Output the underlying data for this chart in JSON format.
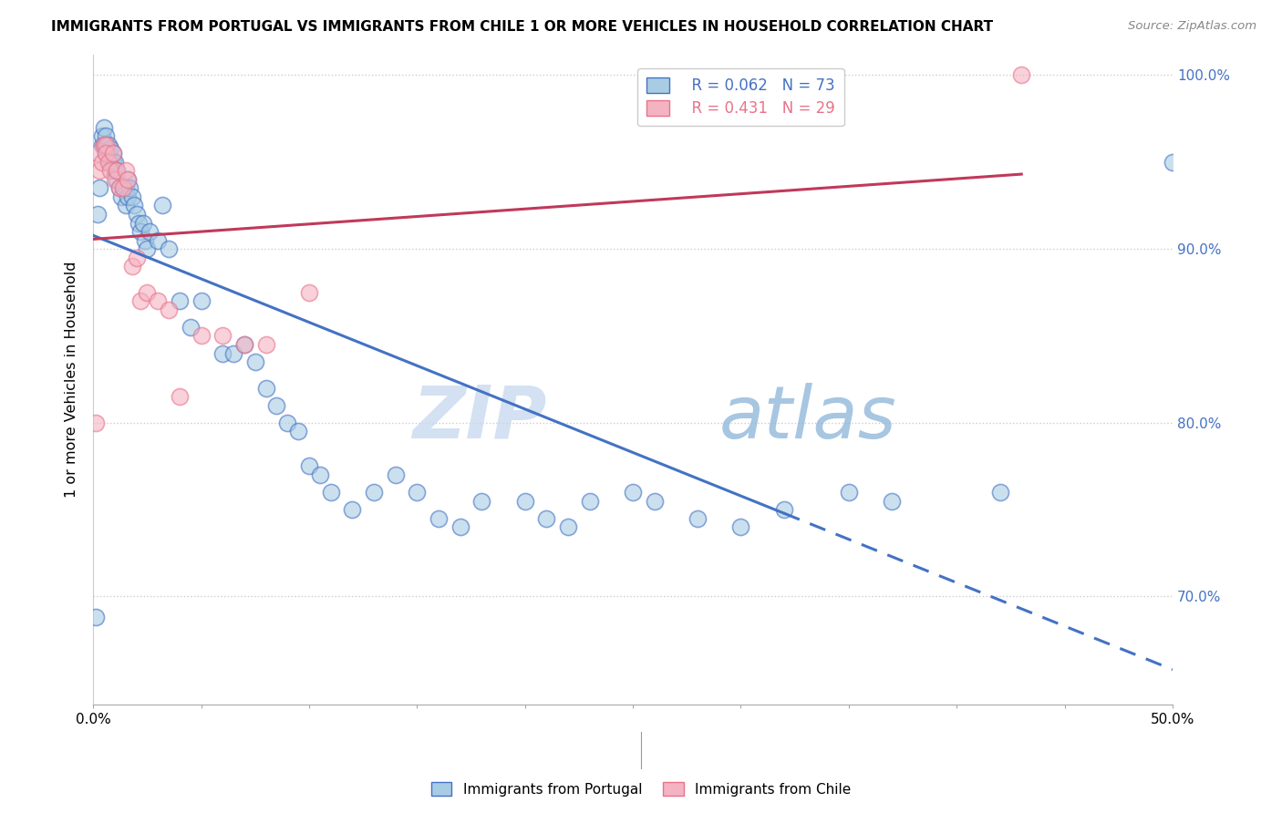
{
  "title": "IMMIGRANTS FROM PORTUGAL VS IMMIGRANTS FROM CHILE 1 OR MORE VEHICLES IN HOUSEHOLD CORRELATION CHART",
  "source": "Source: ZipAtlas.com",
  "ylabel": "1 or more Vehicles in Household",
  "xlim": [
    0.0,
    0.5
  ],
  "ylim": [
    0.638,
    1.012
  ],
  "yticks": [
    0.7,
    0.8,
    0.9,
    1.0
  ],
  "ytick_labels": [
    "70.0%",
    "80.0%",
    "90.0%",
    "100.0%"
  ],
  "xticks": [
    0.0,
    0.05,
    0.1,
    0.15,
    0.2,
    0.25,
    0.3,
    0.35,
    0.4,
    0.45,
    0.5
  ],
  "xtick_labels": [
    "0.0%",
    "",
    "",
    "",
    "",
    "",
    "",
    "",
    "",
    "",
    "50.0%"
  ],
  "portugal_R": 0.062,
  "portugal_N": 73,
  "chile_R": 0.431,
  "chile_N": 29,
  "portugal_color": "#a8cce4",
  "chile_color": "#f4b3c2",
  "portugal_edge_color": "#4472c4",
  "chile_edge_color": "#e8738a",
  "portugal_line_color": "#4472c4",
  "chile_line_color": "#c0395a",
  "portugal_x": [
    0.001,
    0.002,
    0.003,
    0.004,
    0.004,
    0.005,
    0.005,
    0.006,
    0.006,
    0.007,
    0.007,
    0.008,
    0.008,
    0.009,
    0.009,
    0.01,
    0.01,
    0.011,
    0.011,
    0.012,
    0.013,
    0.014,
    0.015,
    0.015,
    0.016,
    0.016,
    0.017,
    0.018,
    0.019,
    0.02,
    0.021,
    0.022,
    0.023,
    0.024,
    0.025,
    0.026,
    0.03,
    0.032,
    0.035,
    0.04,
    0.045,
    0.05,
    0.06,
    0.065,
    0.07,
    0.075,
    0.08,
    0.085,
    0.09,
    0.095,
    0.1,
    0.105,
    0.11,
    0.12,
    0.13,
    0.14,
    0.15,
    0.16,
    0.17,
    0.18,
    0.2,
    0.21,
    0.22,
    0.23,
    0.25,
    0.26,
    0.28,
    0.3,
    0.32,
    0.35,
    0.37,
    0.42,
    0.5
  ],
  "portugal_y": [
    0.688,
    0.92,
    0.935,
    0.96,
    0.965,
    0.96,
    0.97,
    0.955,
    0.965,
    0.955,
    0.96,
    0.95,
    0.958,
    0.95,
    0.955,
    0.95,
    0.945,
    0.94,
    0.945,
    0.935,
    0.93,
    0.935,
    0.925,
    0.935,
    0.94,
    0.93,
    0.935,
    0.93,
    0.925,
    0.92,
    0.915,
    0.91,
    0.915,
    0.905,
    0.9,
    0.91,
    0.905,
    0.925,
    0.9,
    0.87,
    0.855,
    0.87,
    0.84,
    0.84,
    0.845,
    0.835,
    0.82,
    0.81,
    0.8,
    0.795,
    0.775,
    0.77,
    0.76,
    0.75,
    0.76,
    0.77,
    0.76,
    0.745,
    0.74,
    0.755,
    0.755,
    0.745,
    0.74,
    0.755,
    0.76,
    0.755,
    0.745,
    0.74,
    0.75,
    0.76,
    0.755,
    0.76,
    0.95
  ],
  "chile_x": [
    0.001,
    0.002,
    0.003,
    0.004,
    0.005,
    0.006,
    0.006,
    0.007,
    0.008,
    0.009,
    0.01,
    0.011,
    0.012,
    0.014,
    0.015,
    0.016,
    0.018,
    0.02,
    0.022,
    0.025,
    0.03,
    0.035,
    0.04,
    0.05,
    0.06,
    0.07,
    0.08,
    0.1,
    0.43
  ],
  "chile_y": [
    0.8,
    0.955,
    0.945,
    0.95,
    0.96,
    0.96,
    0.955,
    0.95,
    0.945,
    0.955,
    0.94,
    0.945,
    0.935,
    0.935,
    0.945,
    0.94,
    0.89,
    0.895,
    0.87,
    0.875,
    0.87,
    0.865,
    0.815,
    0.85,
    0.85,
    0.845,
    0.845,
    0.875,
    1.0
  ],
  "watermark_zip": "ZIP",
  "watermark_atlas": "atlas",
  "background_color": "#ffffff",
  "grid_color": "#cccccc",
  "solid_cutoff": 0.32
}
